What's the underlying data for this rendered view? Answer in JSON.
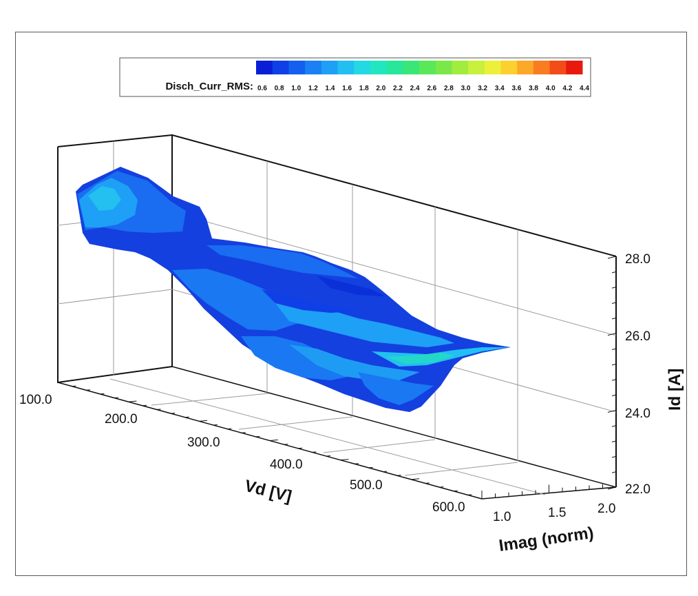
{
  "chart_data": {
    "type": "surface3d",
    "colorbar": {
      "label": "Disch_Curr_RMS:",
      "ticks": [
        "0.6",
        "0.8",
        "1.0",
        "1.2",
        "1.4",
        "1.6",
        "1.8",
        "2.0",
        "2.2",
        "2.4",
        "2.6",
        "2.8",
        "3.0",
        "3.2",
        "3.4",
        "3.6",
        "3.8",
        "4.0",
        "4.2",
        "4.4"
      ],
      "colors": [
        "#0a1ed8",
        "#0f3fe6",
        "#1460ee",
        "#1a80f4",
        "#1ea0f6",
        "#22c0f2",
        "#24d8e4",
        "#22e6c0",
        "#28e69a",
        "#3ae678",
        "#58e858",
        "#7ae848",
        "#a2ec40",
        "#c8f03c",
        "#ecf03a",
        "#fcd030",
        "#fca828",
        "#fa7c20",
        "#f44c18",
        "#e81a10"
      ]
    },
    "axes": {
      "x": {
        "label": "Vd [V]",
        "ticks": [
          "100.0",
          "200.0",
          "300.0",
          "400.0",
          "500.0",
          "600.0"
        ],
        "range": [
          100,
          650
        ]
      },
      "y": {
        "label": "Imag (norm)",
        "ticks": [
          "1.0",
          "1.5",
          "2.0"
        ],
        "range": [
          1.0,
          2.0
        ]
      },
      "z": {
        "label": "Id [A]",
        "ticks": [
          "22.0",
          "24.0",
          "26.0",
          "28.0"
        ],
        "range": [
          22,
          30
        ]
      }
    },
    "grid": true,
    "value_range_shown": [
      0.6,
      2.2
    ]
  }
}
